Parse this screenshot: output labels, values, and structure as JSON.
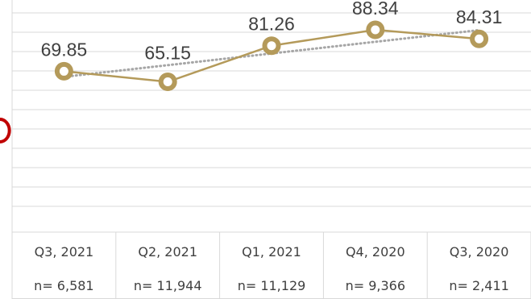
{
  "colors": {
    "series": "#B49A5A",
    "trend": "#A6A6A6",
    "grid": "#D9D9D9",
    "text": "#404040",
    "accent_edge": "#C00000"
  },
  "chart_data": {
    "type": "line",
    "categories": [
      "Q3, 2021",
      "Q2, 2021",
      "Q1, 2021",
      "Q4, 2020",
      "Q3, 2020"
    ],
    "sample_sizes": [
      "n= 6,581",
      "n= 11,944",
      "n= 11,129",
      "n= 9,366",
      "n= 2,411"
    ],
    "series": [
      {
        "values": [
          69.85,
          65.15,
          81.26,
          88.34,
          84.31
        ],
        "labels": [
          "69.85",
          "65.15",
          "81.26",
          "88.34",
          "84.31"
        ]
      }
    ],
    "trendline": {
      "type": "linear",
      "style": "dotted"
    },
    "ylim": [
      0,
      100
    ],
    "grid": true,
    "legend": false
  }
}
